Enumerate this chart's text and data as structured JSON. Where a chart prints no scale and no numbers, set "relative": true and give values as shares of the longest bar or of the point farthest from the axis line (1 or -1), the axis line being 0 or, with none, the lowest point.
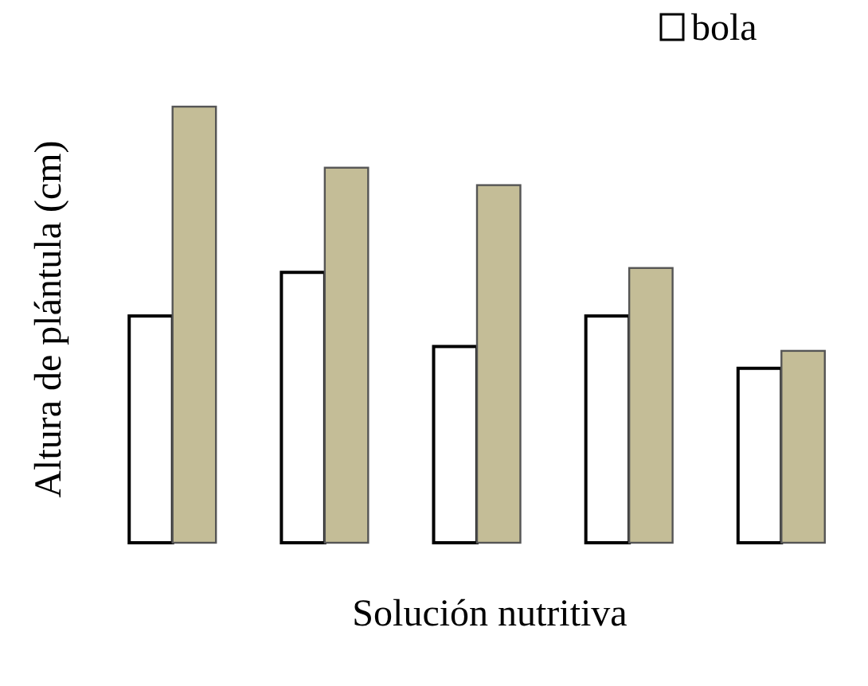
{
  "chart_data": {
    "type": "bar",
    "relative": true,
    "xlabel": "Solución nutritiva",
    "ylabel": "Altura de plántula (cm)",
    "categories": [
      null,
      null,
      null,
      null,
      null
    ],
    "series": [
      {
        "name": "bola",
        "color": "#ffffff",
        "values": [
          0.52,
          0.62,
          0.45,
          0.52,
          0.4
        ]
      },
      {
        "color": "#c4bd97",
        "values": [
          1,
          0.86,
          0.82,
          0.63,
          0.44
        ]
      }
    ],
    "legend": "top right"
  }
}
